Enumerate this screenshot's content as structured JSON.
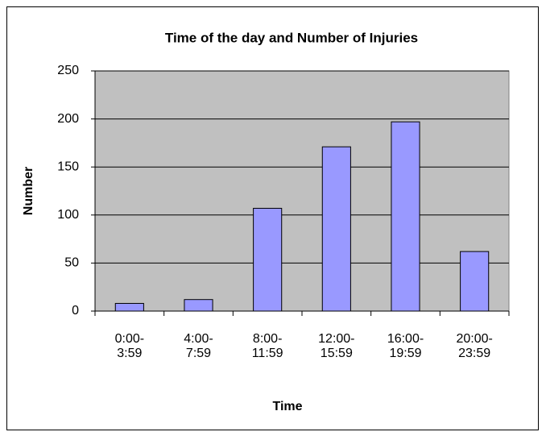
{
  "chart_data": {
    "type": "bar",
    "title": "Time of the day and Number of Injuries",
    "x_label": "Time",
    "y_label": "Number",
    "categories": [
      "0:00-\n3:59",
      "4:00-\n7:59",
      "8:00-\n11:59",
      "12:00-\n15:59",
      "16:00-\n19:59",
      "20:00-\n23:59"
    ],
    "values": [
      8,
      12,
      107,
      171,
      197,
      62
    ],
    "color": "#9999ff",
    "plot_background": "#c0c0c0",
    "ylim": [
      0,
      250
    ],
    "yticks": [
      0,
      50,
      100,
      150,
      200,
      250
    ],
    "grid": true
  }
}
